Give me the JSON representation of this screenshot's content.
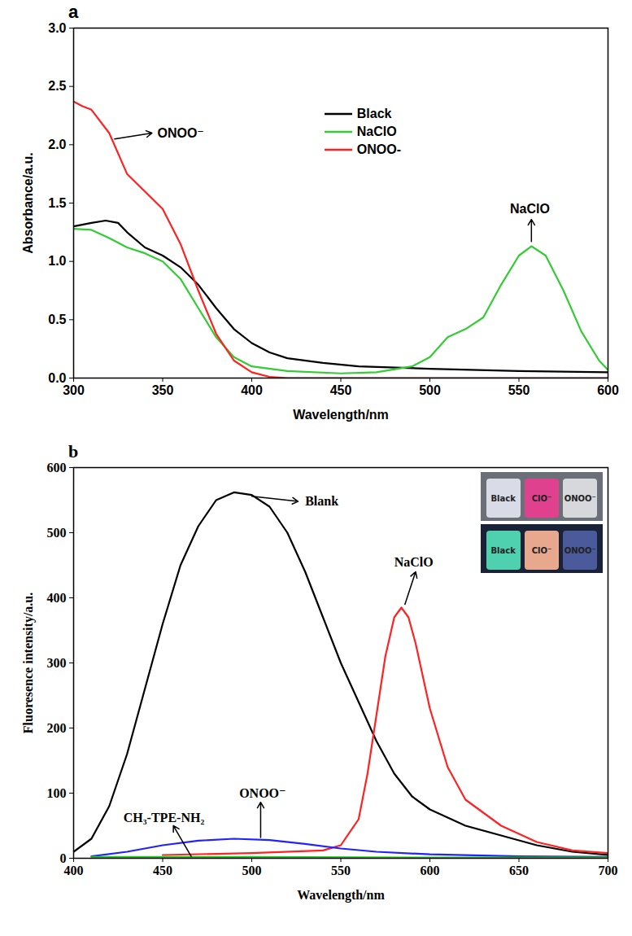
{
  "chart_data": [
    {
      "type": "line",
      "panel_label": "a",
      "x_label": "Wavelength/nm",
      "y_label": "Absorbance/a.u.",
      "xlim": [
        300,
        600
      ],
      "xticks": [
        300,
        350,
        400,
        450,
        500,
        550,
        600
      ],
      "ylim": [
        0,
        3.0
      ],
      "yticks": [
        {
          "value": 0,
          "label": "0.0"
        },
        {
          "value": 0.5,
          "label": "0.5"
        },
        {
          "value": 1,
          "label": "1.0"
        },
        {
          "value": 1.5,
          "label": "1.5"
        },
        {
          "value": 2,
          "label": "2.0"
        },
        {
          "value": 2.5,
          "label": "2.5"
        },
        {
          "value": 3,
          "label": "3.0"
        }
      ],
      "legend": "top",
      "series": [
        {
          "name": "Black",
          "color": "#000000",
          "x": [
            300,
            310,
            318,
            325,
            330,
            340,
            350,
            360,
            370,
            380,
            390,
            400,
            410,
            420,
            440,
            460,
            500,
            550,
            600
          ],
          "values": [
            1.3,
            1.33,
            1.35,
            1.33,
            1.25,
            1.12,
            1.05,
            0.95,
            0.8,
            0.6,
            0.42,
            0.3,
            0.22,
            0.17,
            0.13,
            0.1,
            0.08,
            0.06,
            0.05
          ]
        },
        {
          "name": "NaClO",
          "color": "#33cc33",
          "x": [
            300,
            310,
            320,
            330,
            340,
            350,
            360,
            370,
            380,
            390,
            400,
            420,
            450,
            470,
            490,
            500,
            510,
            520,
            530,
            540,
            550,
            557,
            565,
            575,
            585,
            595,
            600
          ],
          "values": [
            1.28,
            1.27,
            1.2,
            1.12,
            1.07,
            1.0,
            0.85,
            0.6,
            0.35,
            0.18,
            0.1,
            0.06,
            0.04,
            0.05,
            0.1,
            0.18,
            0.35,
            0.42,
            0.52,
            0.8,
            1.05,
            1.13,
            1.05,
            0.75,
            0.4,
            0.15,
            0.07
          ]
        },
        {
          "name": "ONOO-",
          "color": "#ff2222",
          "x": [
            300,
            305,
            310,
            320,
            330,
            340,
            350,
            360,
            370,
            380,
            390,
            400,
            410,
            420,
            450,
            500,
            600
          ],
          "values": [
            2.37,
            2.33,
            2.3,
            2.1,
            1.75,
            1.6,
            1.45,
            1.15,
            0.75,
            0.38,
            0.15,
            0.05,
            0.01,
            0,
            0,
            0,
            0
          ]
        }
      ],
      "annotations": [
        {
          "text": "ONOO⁻",
          "x": 347,
          "y": 2.1,
          "arrow": [
            323,
            2.05,
            344,
            2.1
          ]
        },
        {
          "text": "NaClO",
          "x": 545,
          "y": 1.45,
          "arrow": [
            557,
            1.17,
            557,
            1.36
          ]
        }
      ]
    },
    {
      "type": "line",
      "panel_label": "b",
      "x_label": "Wavelength/nm",
      "y_label": "Fluoresence intensity/a.u.",
      "xlim": [
        400,
        700
      ],
      "xticks": [
        400,
        450,
        500,
        550,
        600,
        650,
        700
      ],
      "ylim": [
        0,
        600
      ],
      "yticks": [
        0,
        100,
        200,
        300,
        400,
        500,
        600
      ],
      "series": [
        {
          "name": "Blank",
          "color": "#000000",
          "x": [
            400,
            410,
            420,
            430,
            440,
            450,
            460,
            470,
            480,
            490,
            500,
            510,
            520,
            530,
            540,
            550,
            560,
            570,
            580,
            590,
            600,
            620,
            640,
            660,
            680,
            700
          ],
          "values": [
            10,
            30,
            80,
            160,
            260,
            360,
            450,
            510,
            550,
            562,
            558,
            540,
            500,
            440,
            370,
            300,
            240,
            180,
            130,
            95,
            75,
            50,
            35,
            20,
            10,
            5
          ]
        },
        {
          "name": "NaClO",
          "color": "#ff2222",
          "x": [
            450,
            500,
            540,
            550,
            560,
            565,
            570,
            575,
            580,
            584,
            588,
            592,
            600,
            610,
            620,
            640,
            660,
            680,
            700
          ],
          "values": [
            5,
            8,
            12,
            20,
            60,
            130,
            220,
            310,
            370,
            385,
            370,
            330,
            230,
            140,
            90,
            50,
            25,
            12,
            8
          ]
        },
        {
          "name": "ONOO⁻",
          "color": "#2222ff",
          "x": [
            410,
            430,
            450,
            470,
            490,
            510,
            530,
            550,
            570,
            600,
            650,
            700
          ],
          "values": [
            3,
            10,
            20,
            27,
            30,
            28,
            22,
            15,
            10,
            6,
            3,
            2
          ]
        },
        {
          "name": "CH₃-TPE-NH₂",
          "color": "#22cc22",
          "x": [
            410,
            500,
            600,
            700
          ],
          "values": [
            2,
            2,
            1,
            1
          ]
        }
      ],
      "annotations": [
        {
          "text": "Blank",
          "x": 530,
          "y": 548,
          "arrow": [
            500,
            556,
            526,
            548
          ]
        },
        {
          "text": "NaClO",
          "x": 580,
          "y": 455,
          "arrow": [
            586,
            390,
            592,
            440
          ]
        },
        {
          "text": "ONOO⁻",
          "x": 493,
          "y": 100,
          "arrow": [
            505,
            32,
            505,
            86
          ]
        },
        {
          "text": "CH₃-TPE-NH₂",
          "x": 428,
          "y": 62,
          "arrow": [
            466,
            3,
            456,
            50
          ]
        }
      ],
      "inset_labels": [
        "Black",
        "ClO⁻",
        "ONOO⁻"
      ]
    }
  ]
}
